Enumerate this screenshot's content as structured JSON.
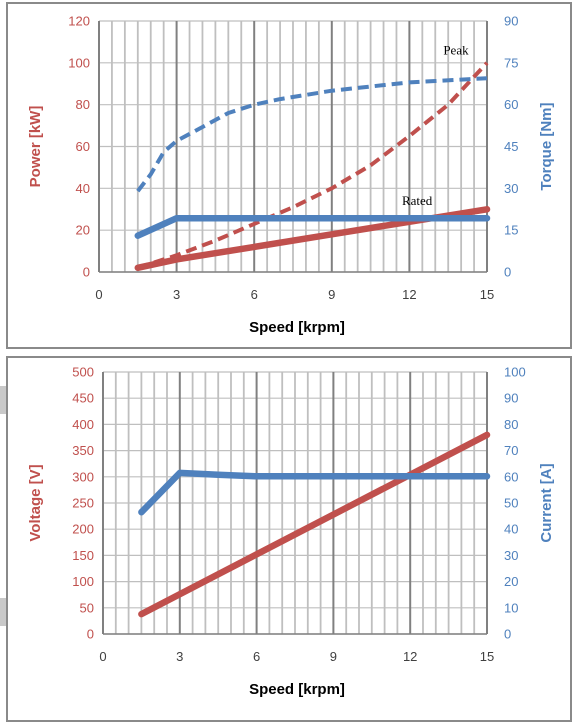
{
  "colors": {
    "red": "#c0504d",
    "blue": "#4f81bd",
    "grid_major": "#808080",
    "grid_minor": "#bfbfbf",
    "tick_dark": "#404040"
  },
  "chart_data": [
    {
      "type": "line",
      "xlabel": "Speed [krpm]",
      "ylabel_left": "Power [kW]",
      "ylabel_right": "Torque [Nm]",
      "xlim": [
        0,
        15
      ],
      "ylim_left": [
        0,
        120
      ],
      "ylim_right": [
        0,
        90
      ],
      "x_ticks": [
        0,
        3,
        6,
        9,
        12,
        15
      ],
      "y_left_ticks": [
        0,
        20,
        40,
        60,
        80,
        100,
        120
      ],
      "y_right_ticks": [
        0,
        15,
        30,
        45,
        60,
        75,
        90
      ],
      "grid": true,
      "annotations": [
        {
          "text": "Peak",
          "x": 13.8,
          "y_left": 104
        },
        {
          "text": "Rated",
          "x": 12.3,
          "y_left": 32
        }
      ],
      "series": [
        {
          "color": "red",
          "axis": "left",
          "dash": true,
          "x": [
            1.5,
            3,
            4.5,
            6,
            7.5,
            9,
            10.5,
            12,
            13.5,
            15
          ],
          "y": [
            2,
            8,
            15,
            23,
            31,
            40,
            51,
            65,
            80,
            100
          ]
        },
        {
          "color": "red",
          "axis": "left",
          "dash": false,
          "x": [
            1.5,
            3,
            6,
            9,
            12,
            15
          ],
          "y": [
            2,
            6,
            12,
            18,
            24,
            30
          ]
        },
        {
          "color": "blue",
          "axis": "right",
          "dash": true,
          "x": [
            1.5,
            2,
            2.5,
            3,
            4,
            5,
            6,
            7,
            8,
            9,
            10,
            11,
            12,
            13,
            14,
            15
          ],
          "y": [
            29,
            35,
            43,
            47,
            52,
            57,
            60,
            62,
            63.5,
            65,
            66,
            67,
            68,
            68.5,
            69,
            69.5
          ]
        },
        {
          "color": "blue",
          "axis": "right",
          "dash": false,
          "x": [
            1.5,
            3,
            6,
            9,
            12,
            15
          ],
          "y": [
            13,
            19.3,
            19.3,
            19.3,
            19.3,
            19.3
          ]
        }
      ]
    },
    {
      "type": "line",
      "xlabel": "Speed [krpm]",
      "ylabel_left": "Voltage [V]",
      "ylabel_right": "Current [A]",
      "xlim": [
        0,
        15
      ],
      "ylim_left": [
        0,
        500
      ],
      "ylim_right": [
        0,
        100
      ],
      "x_ticks": [
        0,
        3,
        6,
        9,
        12,
        15
      ],
      "y_left_ticks": [
        0,
        50,
        100,
        150,
        200,
        250,
        300,
        350,
        400,
        450,
        500
      ],
      "y_right_ticks": [
        0,
        10,
        20,
        30,
        40,
        50,
        60,
        70,
        80,
        90,
        100
      ],
      "grid": true,
      "annotations": [],
      "series": [
        {
          "color": "red",
          "axis": "left",
          "dash": false,
          "x": [
            1.5,
            15
          ],
          "y": [
            38,
            380
          ]
        },
        {
          "color": "blue",
          "axis": "right",
          "dash": false,
          "x": [
            1.5,
            3,
            4.5,
            6,
            9,
            12,
            15
          ],
          "y": [
            46.5,
            61.5,
            60.8,
            60.2,
            60.2,
            60.2,
            60.2
          ]
        }
      ]
    }
  ]
}
